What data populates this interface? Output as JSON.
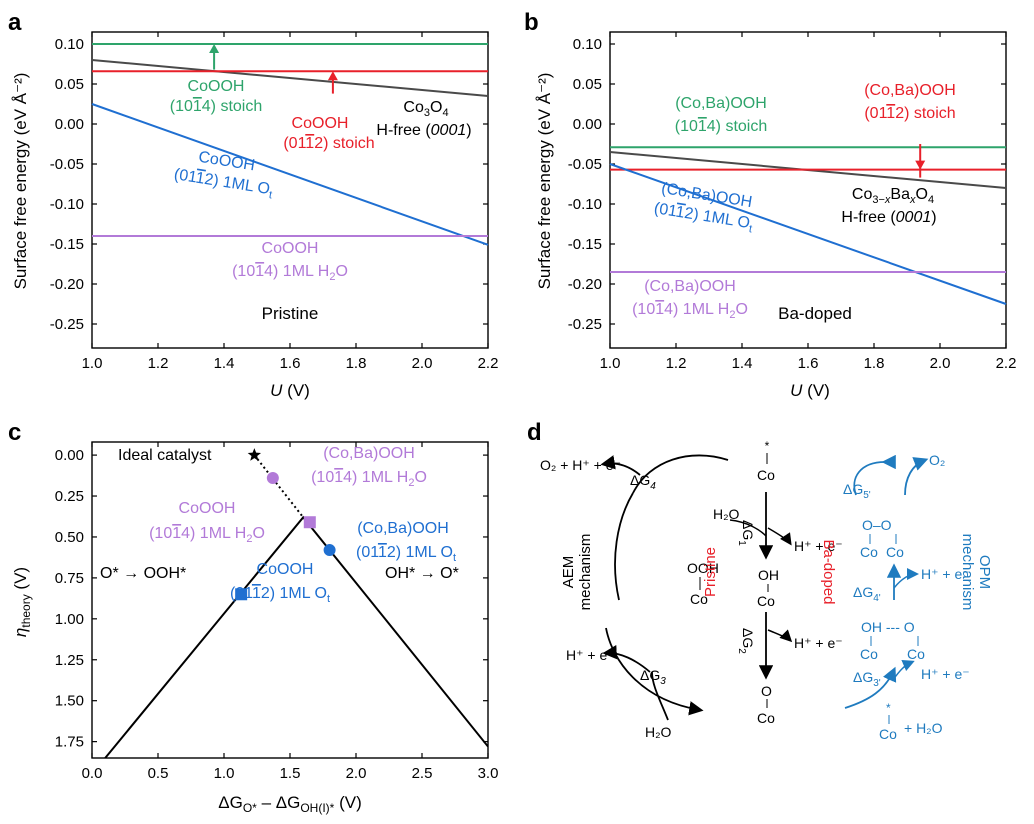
{
  "colors": {
    "green": "#2ea46b",
    "red": "#e8202a",
    "gray": "#4a4a4a",
    "blue": "#1f6fd1",
    "purple": "#b27ad8",
    "black": "#000000",
    "teal": "#1f7bbf"
  },
  "chart_data": [
    {
      "panel": "a",
      "type": "line",
      "title": "",
      "note": "Pristine",
      "xlabel_var": "U",
      "xlabel_unit": " (V)",
      "ylabel": "Surface free energy (eV Å⁻²)",
      "xlim": [
        1.0,
        2.2
      ],
      "ylim": [
        -0.28,
        0.115
      ],
      "xticks": [
        "1.0",
        "1.2",
        "1.4",
        "1.6",
        "1.8",
        "2.0",
        "2.2"
      ],
      "xtick_values": [
        1.0,
        1.2,
        1.4,
        1.6,
        1.8,
        2.0,
        2.2
      ],
      "yticks": [
        "0.10",
        "0.05",
        "0.00",
        "-0.05",
        "-0.10",
        "-0.15",
        "-0.20",
        "-0.25"
      ],
      "ytick_values": [
        0.1,
        0.05,
        0.0,
        -0.05,
        -0.1,
        -0.15,
        -0.2,
        -0.25
      ],
      "series": [
        {
          "name": "CoOOH (10-14) stoich",
          "color": "green",
          "x": [
            1.0,
            2.2
          ],
          "y": [
            0.1,
            0.1
          ]
        },
        {
          "name": "Co3O4 H-free (0001)",
          "color": "gray",
          "x": [
            1.0,
            2.2
          ],
          "y": [
            0.08,
            0.035
          ]
        },
        {
          "name": "CoOOH (01-12) stoich",
          "color": "red",
          "x": [
            1.0,
            2.2
          ],
          "y": [
            0.066,
            0.066
          ]
        },
        {
          "name": "CoOOH (01-12) 1ML Ot",
          "color": "blue",
          "x": [
            1.0,
            2.2
          ],
          "y": [
            0.025,
            -0.151
          ]
        },
        {
          "name": "CoOOH (10-14) 1ML H2O",
          "color": "purple",
          "x": [
            1.0,
            2.2
          ],
          "y": [
            -0.14,
            -0.14
          ]
        }
      ],
      "arrows": [
        {
          "color": "green",
          "x": 1.37,
          "y_from": 0.068,
          "y_to": 0.1
        },
        {
          "color": "red",
          "x": 1.73,
          "y_from": 0.038,
          "y_to": 0.066
        }
      ],
      "labels": {
        "green_1": "CoOOH",
        "green_2": "(10",
        "green_3": "1",
        "green_4": "4) stoich",
        "red_1": "CoOOH",
        "red_2": "(01",
        "red_3": "1",
        "red_4": "2) stoich",
        "gray_1": "Co",
        "gray_1_sub1": "3",
        "gray_1_mid": "O",
        "gray_1_sub2": "4",
        "gray_2a": "H-free (",
        "gray_2b": "0001",
        "gray_2c": ")",
        "blue_1": "CoOOH",
        "blue_2": "(01",
        "blue_3": "1",
        "blue_4": "2) 1ML O",
        "blue_4_sub": "t",
        "purple_1": "CoOOH",
        "purple_2": "(10",
        "purple_3": "1",
        "purple_4": "4) 1ML H",
        "purple_4_sub": "2",
        "purple_4_end": "O"
      }
    },
    {
      "panel": "b",
      "type": "line",
      "title": "",
      "note": "Ba-doped",
      "xlabel_var": "U",
      "xlabel_unit": " (V)",
      "ylabel": "Surface free energy (eV Å⁻²)",
      "xlim": [
        1.0,
        2.2
      ],
      "ylim": [
        -0.28,
        0.115
      ],
      "xticks": [
        "1.0",
        "1.2",
        "1.4",
        "1.6",
        "1.8",
        "2.0",
        "2.2"
      ],
      "xtick_values": [
        1.0,
        1.2,
        1.4,
        1.6,
        1.8,
        2.0,
        2.2
      ],
      "yticks": [
        "0.10",
        "0.05",
        "0.00",
        "-0.05",
        "-0.10",
        "-0.15",
        "-0.20",
        "-0.25"
      ],
      "ytick_values": [
        0.1,
        0.05,
        0.0,
        -0.05,
        -0.1,
        -0.15,
        -0.2,
        -0.25
      ],
      "series": [
        {
          "name": "(Co,Ba)OOH (10-14) stoich",
          "color": "green",
          "x": [
            1.0,
            2.2
          ],
          "y": [
            -0.029,
            -0.029
          ]
        },
        {
          "name": "Co3-xBaxO4 H-free (0001)",
          "color": "gray",
          "x": [
            1.0,
            2.2
          ],
          "y": [
            -0.035,
            -0.08
          ]
        },
        {
          "name": "(Co,Ba)OOH (01-12) stoich",
          "color": "red",
          "x": [
            1.0,
            2.2
          ],
          "y": [
            -0.057,
            -0.057
          ]
        },
        {
          "name": "(Co,Ba)OOH (01-12) 1ML Ot",
          "color": "blue",
          "x": [
            1.0,
            2.2
          ],
          "y": [
            -0.05,
            -0.225
          ]
        },
        {
          "name": "(Co,Ba)OOH (10-14) 1ML H2O",
          "color": "purple",
          "x": [
            1.0,
            2.2
          ],
          "y": [
            -0.185,
            -0.185
          ]
        }
      ],
      "arrows": [
        {
          "color": "red",
          "x": 1.94,
          "y_from": -0.025,
          "y_to": -0.057
        }
      ],
      "labels": {
        "green_1": "(Co,Ba)OOH",
        "green_2": "(10",
        "green_3": "1",
        "green_4": "4) stoich",
        "red_1": "(Co,Ba)OOH",
        "red_2": "(01",
        "red_3": "1",
        "red_4": "2) stoich",
        "gray_1a": "Co",
        "gray_1_sub1": "3−",
        "gray_1_x1": "x",
        "gray_1b": "Ba",
        "gray_1_x2": "x",
        "gray_1c": "O",
        "gray_1_sub2": "4",
        "gray_2a": "H-free (",
        "gray_2b": "0001",
        "gray_2c": ")",
        "blue_1": "(Co,Ba)OOH",
        "blue_2": "(01",
        "blue_3": "1",
        "blue_4": "2) 1ML O",
        "blue_4_sub": "t",
        "purple_1": "(Co,Ba)OOH",
        "purple_2": "(10",
        "purple_3": "1",
        "purple_4": "4) 1ML H",
        "purple_4_sub": "2",
        "purple_4_end": "O"
      }
    },
    {
      "panel": "c",
      "type": "line",
      "title": "",
      "xlabel": "ΔG",
      "xlabel_sub1": "O*",
      "xlabel_mid": " – ΔG",
      "xlabel_sub2": "OH(I)*",
      "xlabel_end": " (V)",
      "ylabel": "η",
      "ylabel_sub": "theory",
      "ylabel_end": " (V)",
      "xlim": [
        0.0,
        3.0
      ],
      "ylim": [
        1.85,
        -0.08
      ],
      "xticks": [
        "0.0",
        "0.5",
        "1.0",
        "1.5",
        "2.0",
        "2.5",
        "3.0"
      ],
      "xtick_values": [
        0.0,
        0.5,
        1.0,
        1.5,
        2.0,
        2.5,
        3.0
      ],
      "yticks": [
        "0.00",
        "0.25",
        "0.50",
        "0.75",
        "1.00",
        "1.25",
        "1.50",
        "1.75"
      ],
      "ytick_values": [
        0.0,
        0.25,
        0.5,
        0.75,
        1.0,
        1.25,
        1.5,
        1.75
      ],
      "volcano": {
        "x": [
          0.1,
          1.6,
          3.0
        ],
        "y": [
          1.85,
          0.38,
          1.78
        ]
      },
      "ideal_line": {
        "x": [
          1.23,
          1.6
        ],
        "y": [
          0.0,
          0.38
        ]
      },
      "points": [
        {
          "name": "Ideal catalyst",
          "marker": "star",
          "color": "black",
          "x": 1.23,
          "y": 0.0
        },
        {
          "name": "(Co,Ba)OOH (10-14) 1ML H2O",
          "marker": "circle",
          "color": "purple",
          "x": 1.37,
          "y": 0.14
        },
        {
          "name": "CoOOH (10-14) 1ML H2O",
          "marker": "square",
          "color": "purple",
          "x": 1.65,
          "y": 0.41
        },
        {
          "name": "(Co,Ba)OOH (01-12) 1ML Ot",
          "marker": "circle",
          "color": "blue",
          "x": 1.8,
          "y": 0.58
        },
        {
          "name": "CoOOH (01-12) 1ML Ot",
          "marker": "square",
          "color": "blue",
          "x": 1.13,
          "y": 0.85
        }
      ],
      "labels": {
        "ideal": "Ideal catalyst",
        "left_region": "O* → OOH*",
        "right_region": "OH* → O*",
        "p1_1": "(Co,Ba)OOH",
        "p1_2": "(10",
        "p1_3": "1",
        "p1_4": "4) 1ML H",
        "p1_sub": "2",
        "p1_end": "O",
        "p2_1": "CoOOH",
        "p2_2": "(10",
        "p2_3": "1",
        "p2_4": "4) 1ML H",
        "p2_sub": "2",
        "p2_end": "O",
        "p3_1": "(Co,Ba)OOH",
        "p3_2": "(01",
        "p3_3": "1",
        "p3_4": "2) 1ML O",
        "p3_sub": "t",
        "p4_1": "CoOOH",
        "p4_2": "(01",
        "p4_3": "1",
        "p4_4": "2) 1ML O",
        "p4_sub": "t"
      }
    }
  ],
  "diagram_d": {
    "panel": "d",
    "aem_label_1": "AEM",
    "aem_label_2": "mechanism",
    "opm_label_1": "OPM",
    "opm_label_2": "mechanism",
    "pristine": "Pristine",
    "ba_doped": "Ba-doped",
    "o2_h_e": "O₂ + H⁺ + e⁻",
    "h_e": "H⁺ + e⁻",
    "h2o": "H₂O",
    "o2": "O₂",
    "plus_h2o": "+ H₂O",
    "co": "Co",
    "star": "*",
    "oh": "OH",
    "o": "O",
    "ooh": "OOH",
    "o_o": "O–O",
    "oh_o": "OH --- O",
    "dg": "ΔG",
    "dg1_sub": "1",
    "dg2_sub": "2",
    "dg3_sub": "3",
    "dg4_sub": "4",
    "dg3p_sub": "3'",
    "dg4p_sub": "4'",
    "dg5p_sub": "5'"
  },
  "panel_letters": [
    "a",
    "b",
    "c",
    "d"
  ]
}
